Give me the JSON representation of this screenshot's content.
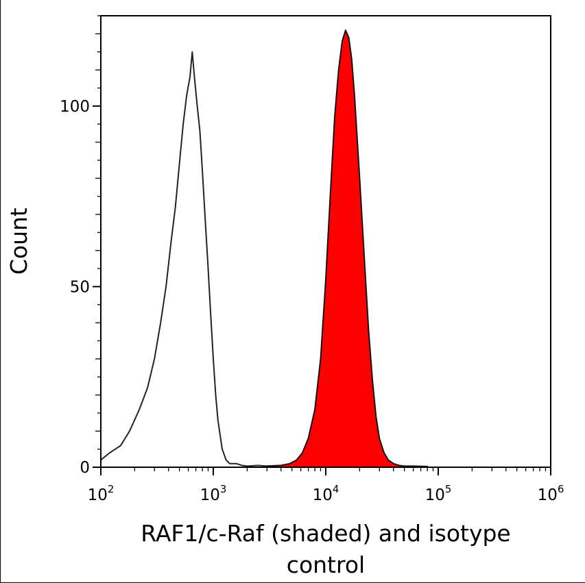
{
  "chart_data": {
    "type": "area",
    "title": "",
    "xlabel_lines": [
      "RAF1/c-Raf (shaded) and isotype",
      "control"
    ],
    "ylabel": "Count",
    "x_scale": "log",
    "xlim": [
      100,
      1000000
    ],
    "ylim": [
      0,
      125
    ],
    "x_ticks": [
      {
        "base": "10",
        "exp": "2"
      },
      {
        "base": "10",
        "exp": "3"
      },
      {
        "base": "10",
        "exp": "4"
      },
      {
        "base": "10",
        "exp": "5"
      },
      {
        "base": "10",
        "exp": "6"
      }
    ],
    "y_ticks": [
      "0",
      "50",
      "100"
    ],
    "y_tick_values": [
      0,
      50,
      100
    ],
    "grid": false,
    "legend": "none",
    "series": [
      {
        "style": "outline",
        "color": "#222222",
        "x": [
          100,
          120,
          150,
          180,
          220,
          260,
          300,
          340,
          380,
          420,
          460,
          500,
          540,
          580,
          620,
          650,
          680,
          720,
          760,
          800,
          850,
          900,
          950,
          1000,
          1050,
          1100,
          1200,
          1300,
          1400,
          1600,
          1800,
          2000,
          2500,
          3000,
          4000
        ],
        "y": [
          2,
          4,
          6,
          10,
          16,
          22,
          30,
          40,
          50,
          62,
          72,
          84,
          95,
          103,
          108,
          115,
          108,
          100,
          93,
          82,
          68,
          55,
          42,
          30,
          20,
          13,
          5,
          2,
          1,
          1,
          0.5,
          0.3,
          0.5,
          0.3,
          0.5
        ]
      },
      {
        "style": "filled",
        "color": "#ff0000",
        "outline_color": "#111111",
        "x": [
          3000,
          4000,
          4800,
          5500,
          6200,
          7000,
          8000,
          9000,
          10000,
          11000,
          12000,
          13000,
          14000,
          15000,
          16000,
          17000,
          18000,
          20000,
          22000,
          24000,
          26000,
          28000,
          30000,
          33000,
          36000,
          40000,
          45000,
          50000,
          60000,
          80000
        ],
        "y": [
          0.3,
          0.5,
          1,
          2,
          4,
          8,
          16,
          30,
          52,
          76,
          97,
          110,
          118,
          121,
          119,
          113,
          103,
          80,
          58,
          38,
          24,
          14,
          8,
          4,
          2,
          1,
          0.5,
          0.3,
          0.3,
          0.2
        ]
      }
    ]
  }
}
